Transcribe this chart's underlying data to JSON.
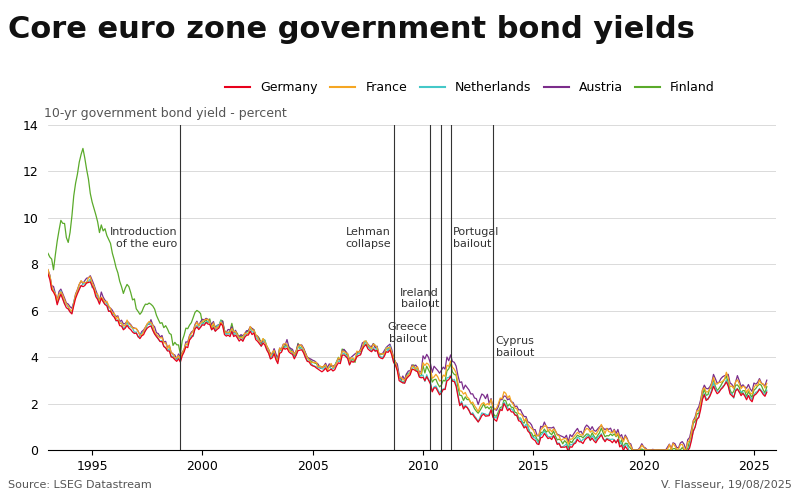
{
  "title": "Core euro zone government bond yields",
  "subtitle": "10-yr government bond yield - percent",
  "source": "Source: LSEG Datastream",
  "author": "V. Flasseur, 19/08/2025",
  "ylim": [
    0,
    14
  ],
  "yticks": [
    0,
    2,
    4,
    6,
    8,
    10,
    12,
    14
  ],
  "series_colors": {
    "Germany": "#e8001c",
    "France": "#f5a623",
    "Netherlands": "#44c8c8",
    "Austria": "#7b2d8b",
    "Finland": "#5aaa2a"
  },
  "background_color": "#ffffff",
  "grid_color": "#cccccc",
  "title_fontsize": 22,
  "subtitle_fontsize": 9,
  "tick_fontsize": 9
}
